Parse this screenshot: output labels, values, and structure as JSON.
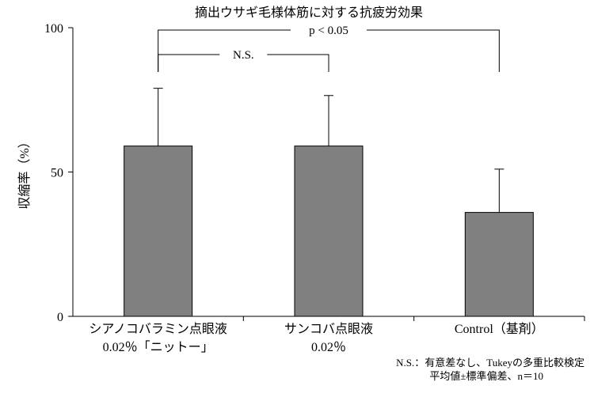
{
  "chart_data": {
    "type": "bar",
    "title": "摘出ウサギ毛様体筋に対する抗疲労効果",
    "ylabel": "収縮率（%）",
    "ylim": [
      0,
      100
    ],
    "yticks": [
      "0",
      "50",
      "100"
    ],
    "categories": [
      [
        "シアノコバラミン点眼液",
        "0.02％「ニットー」"
      ],
      [
        "サンコバ点眼液",
        "0.02％"
      ],
      [
        "Control（基剤）"
      ]
    ],
    "values": [
      59,
      59,
      36
    ],
    "error_upper": [
      79,
      76.5,
      51
    ],
    "bar_color": "#808080",
    "significance": [
      {
        "pair": [
          0,
          2
        ],
        "label": "p < 0.05"
      },
      {
        "pair": [
          0,
          1
        ],
        "label": "N.S."
      }
    ],
    "notes": [
      "N.S.：有意差なし、Tukeyの多重比較検定",
      "平均値±標準偏差、n＝10"
    ]
  }
}
